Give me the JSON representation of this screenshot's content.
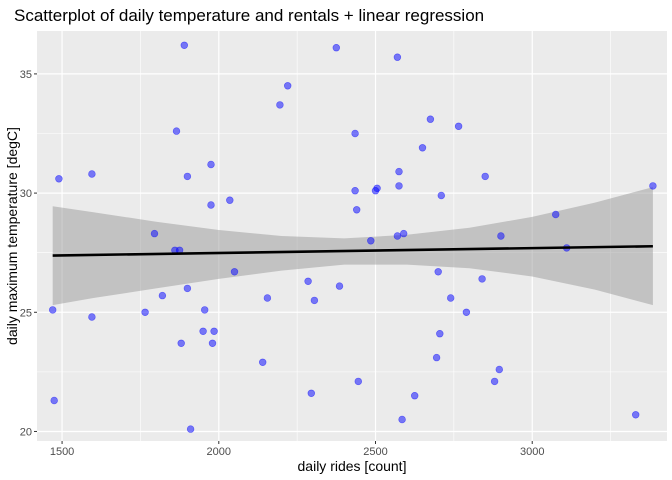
{
  "chart_data": {
    "type": "scatter",
    "title": "Scatterplot of daily temperature and rentals + linear regression",
    "xlabel": "daily rides [count]",
    "ylabel": "daily maximum temperature [degC]",
    "xlim": [
      1420,
      3430
    ],
    "ylim": [
      19.6,
      36.8
    ],
    "x_ticks": [
      1500,
      2000,
      2500,
      3000
    ],
    "x_tick_labels": [
      "1500",
      "2000",
      "2500",
      "3000"
    ],
    "y_ticks": [
      20,
      25,
      30,
      35
    ],
    "y_tick_labels": [
      "20",
      "25",
      "30",
      "35"
    ],
    "grid": true,
    "legend": "none",
    "colors": {
      "panel_background": "#ebebeb",
      "grid": "#ffffff",
      "points": "#0000ff",
      "point_opacity": 0.5,
      "regression_line": "#000000",
      "confidence_band": "#999999",
      "confidence_band_opacity": 0.5
    },
    "points": [
      {
        "x": 1890,
        "y": 36.2
      },
      {
        "x": 2375,
        "y": 36.1
      },
      {
        "x": 2570,
        "y": 35.7
      },
      {
        "x": 2220,
        "y": 34.5
      },
      {
        "x": 2195,
        "y": 33.7
      },
      {
        "x": 2675,
        "y": 33.1
      },
      {
        "x": 2765,
        "y": 32.8
      },
      {
        "x": 1865,
        "y": 32.6
      },
      {
        "x": 2435,
        "y": 32.5
      },
      {
        "x": 2650,
        "y": 31.9
      },
      {
        "x": 1975,
        "y": 31.2
      },
      {
        "x": 2575,
        "y": 30.9
      },
      {
        "x": 1595,
        "y": 30.8
      },
      {
        "x": 1900,
        "y": 30.7
      },
      {
        "x": 2850,
        "y": 30.7
      },
      {
        "x": 1490,
        "y": 30.6
      },
      {
        "x": 2575,
        "y": 30.3
      },
      {
        "x": 3385,
        "y": 30.3
      },
      {
        "x": 2505,
        "y": 30.2
      },
      {
        "x": 2500,
        "y": 30.1
      },
      {
        "x": 2435,
        "y": 30.1
      },
      {
        "x": 2710,
        "y": 29.9
      },
      {
        "x": 2035,
        "y": 29.7
      },
      {
        "x": 1975,
        "y": 29.5
      },
      {
        "x": 2440,
        "y": 29.3
      },
      {
        "x": 3075,
        "y": 29.1
      },
      {
        "x": 1795,
        "y": 28.3
      },
      {
        "x": 2590,
        "y": 28.3
      },
      {
        "x": 2570,
        "y": 28.2
      },
      {
        "x": 2900,
        "y": 28.2
      },
      {
        "x": 2485,
        "y": 28.0
      },
      {
        "x": 3110,
        "y": 27.7
      },
      {
        "x": 1860,
        "y": 27.6
      },
      {
        "x": 1875,
        "y": 27.6
      },
      {
        "x": 2050,
        "y": 26.7
      },
      {
        "x": 2700,
        "y": 26.7
      },
      {
        "x": 2840,
        "y": 26.4
      },
      {
        "x": 2285,
        "y": 26.3
      },
      {
        "x": 2385,
        "y": 26.1
      },
      {
        "x": 1900,
        "y": 26.0
      },
      {
        "x": 1820,
        "y": 25.7
      },
      {
        "x": 2155,
        "y": 25.6
      },
      {
        "x": 2740,
        "y": 25.6
      },
      {
        "x": 2305,
        "y": 25.5
      },
      {
        "x": 1470,
        "y": 25.1
      },
      {
        "x": 1955,
        "y": 25.1
      },
      {
        "x": 1765,
        "y": 25.0
      },
      {
        "x": 2790,
        "y": 25.0
      },
      {
        "x": 1595,
        "y": 24.8
      },
      {
        "x": 1950,
        "y": 24.2
      },
      {
        "x": 1985,
        "y": 24.2
      },
      {
        "x": 2705,
        "y": 24.1
      },
      {
        "x": 1880,
        "y": 23.7
      },
      {
        "x": 1980,
        "y": 23.7
      },
      {
        "x": 2695,
        "y": 23.1
      },
      {
        "x": 2140,
        "y": 22.9
      },
      {
        "x": 2895,
        "y": 22.6
      },
      {
        "x": 2445,
        "y": 22.1
      },
      {
        "x": 2880,
        "y": 22.1
      },
      {
        "x": 2295,
        "y": 21.6
      },
      {
        "x": 2625,
        "y": 21.5
      },
      {
        "x": 1475,
        "y": 21.3
      },
      {
        "x": 3330,
        "y": 20.7
      },
      {
        "x": 2585,
        "y": 20.5
      },
      {
        "x": 1910,
        "y": 20.1
      }
    ],
    "regression": {
      "x": [
        1470,
        3385
      ],
      "y": [
        27.38,
        27.77
      ]
    },
    "confidence_band": {
      "x": [
        1470,
        1600,
        1800,
        2000,
        2200,
        2400,
        2600,
        2800,
        3000,
        3200,
        3385
      ],
      "upper": [
        29.45,
        29.2,
        28.8,
        28.45,
        28.2,
        28.1,
        28.25,
        28.55,
        29.0,
        29.6,
        30.25
      ],
      "lower": [
        25.3,
        25.6,
        26.0,
        26.4,
        26.75,
        27.0,
        27.0,
        26.85,
        26.5,
        25.95,
        25.3
      ]
    }
  }
}
